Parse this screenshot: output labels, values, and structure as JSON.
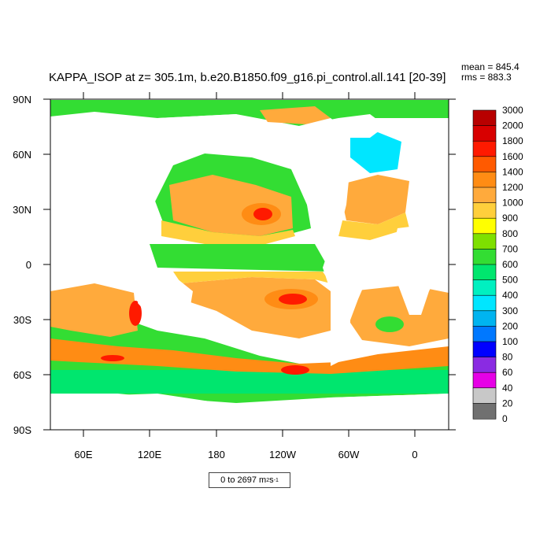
{
  "chart_data": {
    "type": "heatmap",
    "title": "KAPPA_ISOP at z= 305.1m, b.e20.B1850.f09_g16.pi_control.all.141 [20-39]",
    "stats": {
      "mean": "mean = 845.4",
      "rms": "rms = 883.3"
    },
    "x_ticks": [
      "60E",
      "120E",
      "180",
      "120W",
      "60W",
      "0"
    ],
    "y_ticks": [
      "90N",
      "60N",
      "30N",
      "0",
      "30S",
      "60S",
      "90S"
    ],
    "colorbar": {
      "levels": [
        "3000",
        "2000",
        "1800",
        "1600",
        "1400",
        "1200",
        "1000",
        "900",
        "800",
        "700",
        "600",
        "500",
        "400",
        "300",
        "200",
        "100",
        "80",
        "60",
        "40",
        "20",
        "0"
      ],
      "colors": [
        "#b80000",
        "#d80000",
        "#ff1a00",
        "#ff5a00",
        "#ff8c14",
        "#ffaa3c",
        "#ffcf3c",
        "#ffff00",
        "#7ee000",
        "#33dd33",
        "#00e66e",
        "#00f0c0",
        "#00e6ff",
        "#00b4f0",
        "#0078ff",
        "#0000ff",
        "#8a2be2",
        "#e600e6",
        "#c8c8c8",
        "#707070"
      ]
    },
    "range_label": {
      "text": "0 to 2697 m",
      "unit_exp": "2",
      "unit_tail": " s",
      "tail_exp": "-1"
    }
  }
}
